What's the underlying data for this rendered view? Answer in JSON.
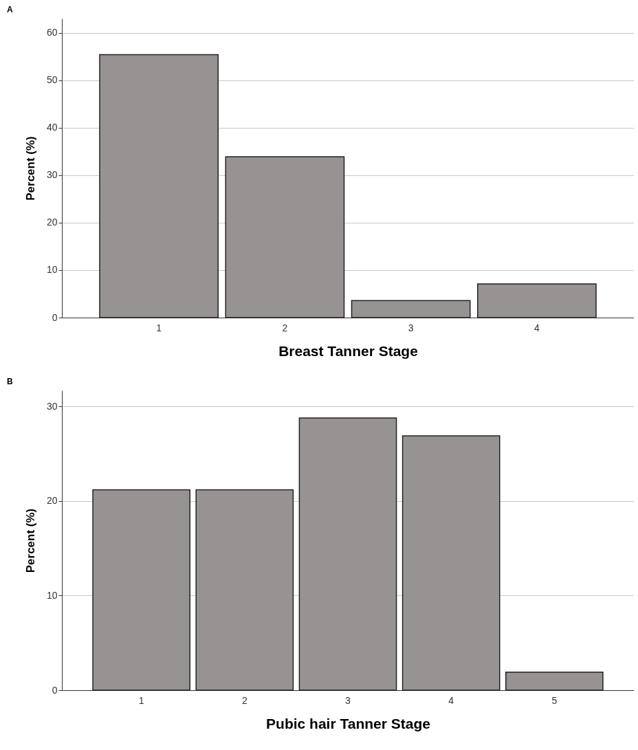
{
  "chart_data": [
    {
      "type": "bar",
      "title": "A",
      "xlabel": "Breast Tanner Stage",
      "ylabel": "Percent (%)",
      "categories": [
        "1",
        "2",
        "3",
        "4"
      ],
      "values": [
        55.4,
        33.9,
        3.6,
        7.1
      ],
      "color": "#989393",
      "ylim": [
        0,
        63
      ],
      "yticks": [
        0,
        10,
        20,
        30,
        40,
        50,
        60
      ],
      "grid": "y"
    },
    {
      "type": "bar",
      "title": "B",
      "xlabel": "Pubic hair  Tanner Stage",
      "ylabel": "Percent (%)",
      "categories": [
        "1",
        "2",
        "3",
        "4",
        "5"
      ],
      "values": [
        21.2,
        21.2,
        28.8,
        26.9,
        1.9
      ],
      "color": "#989393",
      "ylim": [
        0,
        31.7
      ],
      "yticks": [
        0,
        10,
        20,
        30
      ],
      "grid": "y"
    }
  ]
}
